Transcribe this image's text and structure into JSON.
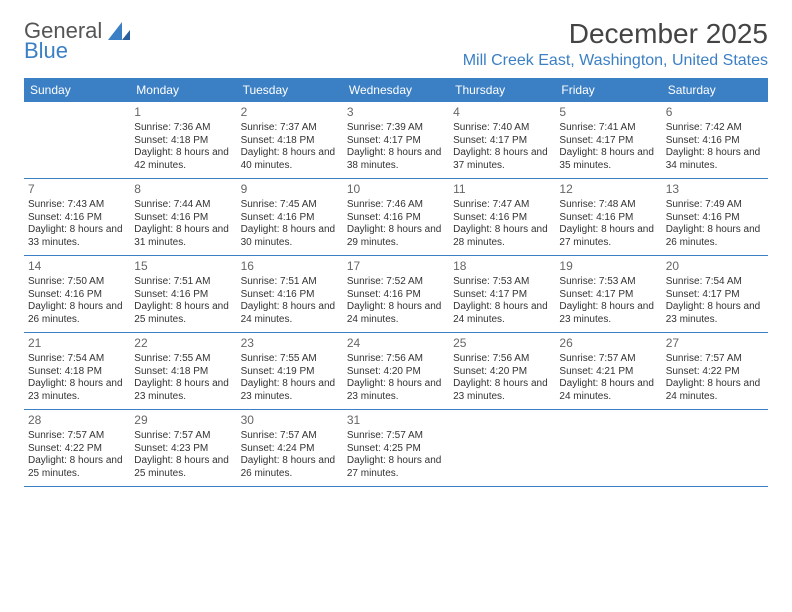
{
  "logo": {
    "text1": "General",
    "text2": "Blue"
  },
  "title": "December 2025",
  "location": "Mill Creek East, Washington, United States",
  "days_of_week": [
    "Sunday",
    "Monday",
    "Tuesday",
    "Wednesday",
    "Thursday",
    "Friday",
    "Saturday"
  ],
  "colors": {
    "header_bg": "#3b7fc4",
    "accent": "#3b7fc4",
    "text": "#333333",
    "muted": "#666666",
    "bg": "#ffffff"
  },
  "typography": {
    "title_fontsize": 28,
    "location_fontsize": 16,
    "dow_fontsize": 12,
    "daynum_fontsize": 12,
    "info_fontsize": 10
  },
  "start_offset": 1,
  "weeks": 5,
  "days": [
    {
      "n": "1",
      "sunrise": "7:36 AM",
      "sunset": "4:18 PM",
      "daylight": "8 hours and 42 minutes."
    },
    {
      "n": "2",
      "sunrise": "7:37 AM",
      "sunset": "4:18 PM",
      "daylight": "8 hours and 40 minutes."
    },
    {
      "n": "3",
      "sunrise": "7:39 AM",
      "sunset": "4:17 PM",
      "daylight": "8 hours and 38 minutes."
    },
    {
      "n": "4",
      "sunrise": "7:40 AM",
      "sunset": "4:17 PM",
      "daylight": "8 hours and 37 minutes."
    },
    {
      "n": "5",
      "sunrise": "7:41 AM",
      "sunset": "4:17 PM",
      "daylight": "8 hours and 35 minutes."
    },
    {
      "n": "6",
      "sunrise": "7:42 AM",
      "sunset": "4:16 PM",
      "daylight": "8 hours and 34 minutes."
    },
    {
      "n": "7",
      "sunrise": "7:43 AM",
      "sunset": "4:16 PM",
      "daylight": "8 hours and 33 minutes."
    },
    {
      "n": "8",
      "sunrise": "7:44 AM",
      "sunset": "4:16 PM",
      "daylight": "8 hours and 31 minutes."
    },
    {
      "n": "9",
      "sunrise": "7:45 AM",
      "sunset": "4:16 PM",
      "daylight": "8 hours and 30 minutes."
    },
    {
      "n": "10",
      "sunrise": "7:46 AM",
      "sunset": "4:16 PM",
      "daylight": "8 hours and 29 minutes."
    },
    {
      "n": "11",
      "sunrise": "7:47 AM",
      "sunset": "4:16 PM",
      "daylight": "8 hours and 28 minutes."
    },
    {
      "n": "12",
      "sunrise": "7:48 AM",
      "sunset": "4:16 PM",
      "daylight": "8 hours and 27 minutes."
    },
    {
      "n": "13",
      "sunrise": "7:49 AM",
      "sunset": "4:16 PM",
      "daylight": "8 hours and 26 minutes."
    },
    {
      "n": "14",
      "sunrise": "7:50 AM",
      "sunset": "4:16 PM",
      "daylight": "8 hours and 26 minutes."
    },
    {
      "n": "15",
      "sunrise": "7:51 AM",
      "sunset": "4:16 PM",
      "daylight": "8 hours and 25 minutes."
    },
    {
      "n": "16",
      "sunrise": "7:51 AM",
      "sunset": "4:16 PM",
      "daylight": "8 hours and 24 minutes."
    },
    {
      "n": "17",
      "sunrise": "7:52 AM",
      "sunset": "4:16 PM",
      "daylight": "8 hours and 24 minutes."
    },
    {
      "n": "18",
      "sunrise": "7:53 AM",
      "sunset": "4:17 PM",
      "daylight": "8 hours and 24 minutes."
    },
    {
      "n": "19",
      "sunrise": "7:53 AM",
      "sunset": "4:17 PM",
      "daylight": "8 hours and 23 minutes."
    },
    {
      "n": "20",
      "sunrise": "7:54 AM",
      "sunset": "4:17 PM",
      "daylight": "8 hours and 23 minutes."
    },
    {
      "n": "21",
      "sunrise": "7:54 AM",
      "sunset": "4:18 PM",
      "daylight": "8 hours and 23 minutes."
    },
    {
      "n": "22",
      "sunrise": "7:55 AM",
      "sunset": "4:18 PM",
      "daylight": "8 hours and 23 minutes."
    },
    {
      "n": "23",
      "sunrise": "7:55 AM",
      "sunset": "4:19 PM",
      "daylight": "8 hours and 23 minutes."
    },
    {
      "n": "24",
      "sunrise": "7:56 AM",
      "sunset": "4:20 PM",
      "daylight": "8 hours and 23 minutes."
    },
    {
      "n": "25",
      "sunrise": "7:56 AM",
      "sunset": "4:20 PM",
      "daylight": "8 hours and 23 minutes."
    },
    {
      "n": "26",
      "sunrise": "7:57 AM",
      "sunset": "4:21 PM",
      "daylight": "8 hours and 24 minutes."
    },
    {
      "n": "27",
      "sunrise": "7:57 AM",
      "sunset": "4:22 PM",
      "daylight": "8 hours and 24 minutes."
    },
    {
      "n": "28",
      "sunrise": "7:57 AM",
      "sunset": "4:22 PM",
      "daylight": "8 hours and 25 minutes."
    },
    {
      "n": "29",
      "sunrise": "7:57 AM",
      "sunset": "4:23 PM",
      "daylight": "8 hours and 25 minutes."
    },
    {
      "n": "30",
      "sunrise": "7:57 AM",
      "sunset": "4:24 PM",
      "daylight": "8 hours and 26 minutes."
    },
    {
      "n": "31",
      "sunrise": "7:57 AM",
      "sunset": "4:25 PM",
      "daylight": "8 hours and 27 minutes."
    }
  ],
  "labels": {
    "sunrise": "Sunrise:",
    "sunset": "Sunset:",
    "daylight": "Daylight:"
  }
}
